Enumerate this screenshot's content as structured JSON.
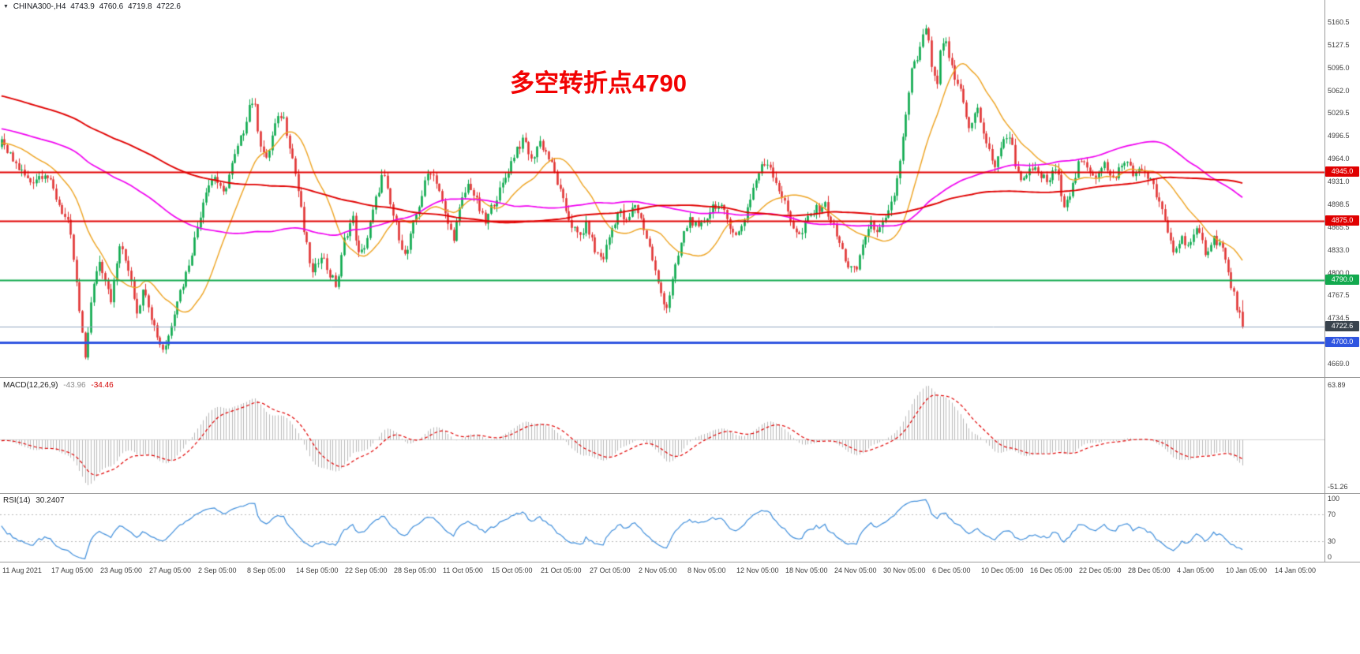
{
  "header": {
    "dropdown_icon": "▼",
    "symbol_period": "CHINA300-,H4",
    "open": "4743.9",
    "high": "4760.6",
    "low": "4719.8",
    "close": "4722.6"
  },
  "annotation": {
    "text": "多空转折点4790",
    "color": "#f20202"
  },
  "chart_data": {
    "type": "candlestick",
    "symbol": "CHINA300-",
    "timeframe": "H4",
    "last_candle": {
      "open": 4743.9,
      "high": 4760.6,
      "low": 4719.8,
      "close": 4722.6
    },
    "price_axis": {
      "visible_min": 4650,
      "visible_max": 5192,
      "ticks": [
        "5160.5",
        "5127.5",
        "5095.0",
        "5062.0",
        "5029.5",
        "4996.5",
        "4964.0",
        "4931.0",
        "4898.5",
        "4865.5",
        "4833.0",
        "4800.0",
        "4767.5",
        "4734.5",
        "4669.0"
      ]
    },
    "horizontal_levels": [
      {
        "label": "4945.0",
        "price": 4945.0,
        "color": "#e00000",
        "line_width": 2
      },
      {
        "label": "4875.0",
        "price": 4875.0,
        "color": "#e00000",
        "line_width": 2
      },
      {
        "label": "4790.0",
        "price": 4790.0,
        "color": "#12a94e",
        "line_width": 2
      },
      {
        "label": "4700.0",
        "price": 4700.0,
        "color": "#2f55e0",
        "line_width": 3
      }
    ],
    "current_price": {
      "label": "4722.6",
      "price": 4722.6,
      "line_color": "#93a8c0",
      "label_bg": "#39434d"
    },
    "candles": {
      "up_color": "#0ba94c",
      "down_color": "#e03333"
    },
    "moving_averages": [
      {
        "name": "fast-ma",
        "color": "#eda21f"
      },
      {
        "name": "mid-ma",
        "color": "#f000f0"
      },
      {
        "name": "slow-ma",
        "color": "#e00000"
      }
    ],
    "close_path_anchors": [
      [
        -0.38,
        5165
      ],
      [
        -0.25,
        5090
      ],
      [
        -0.12,
        5005
      ],
      [
        -0.05,
        4988
      ],
      [
        0.0,
        4985
      ],
      [
        0.009,
        4960
      ],
      [
        0.021,
        4930
      ],
      [
        0.033,
        4945
      ],
      [
        0.042,
        4905
      ],
      [
        0.051,
        4865
      ],
      [
        0.055,
        4810
      ],
      [
        0.06,
        4720
      ],
      [
        0.063,
        4678
      ],
      [
        0.067,
        4750
      ],
      [
        0.073,
        4820
      ],
      [
        0.079,
        4790
      ],
      [
        0.083,
        4760
      ],
      [
        0.089,
        4840
      ],
      [
        0.097,
        4800
      ],
      [
        0.102,
        4745
      ],
      [
        0.108,
        4780
      ],
      [
        0.114,
        4730
      ],
      [
        0.121,
        4690
      ],
      [
        0.125,
        4700
      ],
      [
        0.132,
        4760
      ],
      [
        0.138,
        4790
      ],
      [
        0.146,
        4850
      ],
      [
        0.154,
        4920
      ],
      [
        0.161,
        4940
      ],
      [
        0.167,
        4910
      ],
      [
        0.174,
        4955
      ],
      [
        0.182,
        5000
      ],
      [
        0.188,
        5050
      ],
      [
        0.191,
        5040
      ],
      [
        0.195,
        4990
      ],
      [
        0.2,
        4960
      ],
      [
        0.206,
        5010
      ],
      [
        0.212,
        5030
      ],
      [
        0.218,
        4980
      ],
      [
        0.223,
        4930
      ],
      [
        0.229,
        4850
      ],
      [
        0.235,
        4795
      ],
      [
        0.241,
        4830
      ],
      [
        0.247,
        4800
      ],
      [
        0.253,
        4780
      ],
      [
        0.259,
        4850
      ],
      [
        0.265,
        4880
      ],
      [
        0.27,
        4820
      ],
      [
        0.276,
        4850
      ],
      [
        0.282,
        4900
      ],
      [
        0.288,
        4945
      ],
      [
        0.293,
        4900
      ],
      [
        0.299,
        4860
      ],
      [
        0.305,
        4820
      ],
      [
        0.311,
        4870
      ],
      [
        0.317,
        4910
      ],
      [
        0.323,
        4950
      ],
      [
        0.329,
        4930
      ],
      [
        0.335,
        4880
      ],
      [
        0.341,
        4850
      ],
      [
        0.347,
        4900
      ],
      [
        0.353,
        4930
      ],
      [
        0.359,
        4900
      ],
      [
        0.365,
        4870
      ],
      [
        0.371,
        4900
      ],
      [
        0.377,
        4920
      ],
      [
        0.383,
        4950
      ],
      [
        0.389,
        4980
      ],
      [
        0.395,
        4990
      ],
      [
        0.4,
        4960
      ],
      [
        0.406,
        4990
      ],
      [
        0.412,
        4970
      ],
      [
        0.418,
        4940
      ],
      [
        0.424,
        4900
      ],
      [
        0.43,
        4870
      ],
      [
        0.436,
        4850
      ],
      [
        0.442,
        4870
      ],
      [
        0.448,
        4830
      ],
      [
        0.454,
        4820
      ],
      [
        0.46,
        4860
      ],
      [
        0.466,
        4890
      ],
      [
        0.472,
        4870
      ],
      [
        0.478,
        4900
      ],
      [
        0.484,
        4870
      ],
      [
        0.49,
        4830
      ],
      [
        0.496,
        4780
      ],
      [
        0.502,
        4750
      ],
      [
        0.508,
        4800
      ],
      [
        0.514,
        4850
      ],
      [
        0.52,
        4880
      ],
      [
        0.526,
        4860
      ],
      [
        0.532,
        4880
      ],
      [
        0.538,
        4900
      ],
      [
        0.544,
        4890
      ],
      [
        0.55,
        4870
      ],
      [
        0.555,
        4850
      ],
      [
        0.561,
        4880
      ],
      [
        0.567,
        4920
      ],
      [
        0.573,
        4950
      ],
      [
        0.579,
        4960
      ],
      [
        0.585,
        4930
      ],
      [
        0.591,
        4900
      ],
      [
        0.597,
        4870
      ],
      [
        0.603,
        4850
      ],
      [
        0.609,
        4880
      ],
      [
        0.615,
        4890
      ],
      [
        0.621,
        4900
      ],
      [
        0.627,
        4870
      ],
      [
        0.633,
        4840
      ],
      [
        0.639,
        4810
      ],
      [
        0.645,
        4800
      ],
      [
        0.651,
        4850
      ],
      [
        0.657,
        4870
      ],
      [
        0.663,
        4860
      ],
      [
        0.669,
        4880
      ],
      [
        0.675,
        4920
      ],
      [
        0.681,
        5000
      ],
      [
        0.687,
        5090
      ],
      [
        0.692,
        5110
      ],
      [
        0.698,
        5155
      ],
      [
        0.702,
        5100
      ],
      [
        0.706,
        5060
      ],
      [
        0.709,
        5120
      ],
      [
        0.713,
        5130
      ],
      [
        0.719,
        5080
      ],
      [
        0.725,
        5060
      ],
      [
        0.731,
        5000
      ],
      [
        0.736,
        5040
      ],
      [
        0.743,
        4990
      ],
      [
        0.749,
        4950
      ],
      [
        0.754,
        4980
      ],
      [
        0.761,
        5000
      ],
      [
        0.766,
        4950
      ],
      [
        0.772,
        4930
      ],
      [
        0.778,
        4950
      ],
      [
        0.784,
        4940
      ],
      [
        0.79,
        4930
      ],
      [
        0.796,
        4950
      ],
      [
        0.802,
        4900
      ],
      [
        0.808,
        4920
      ],
      [
        0.814,
        4960
      ],
      [
        0.82,
        4950
      ],
      [
        0.826,
        4940
      ],
      [
        0.832,
        4960
      ],
      [
        0.838,
        4930
      ],
      [
        0.844,
        4950
      ],
      [
        0.85,
        4960
      ],
      [
        0.856,
        4940
      ],
      [
        0.862,
        4950
      ],
      [
        0.868,
        4930
      ],
      [
        0.874,
        4900
      ],
      [
        0.88,
        4860
      ],
      [
        0.885,
        4830
      ],
      [
        0.891,
        4850
      ],
      [
        0.897,
        4840
      ],
      [
        0.903,
        4860
      ],
      [
        0.909,
        4830
      ],
      [
        0.915,
        4850
      ],
      [
        0.921,
        4840
      ],
      [
        0.927,
        4790
      ],
      [
        0.933,
        4750
      ],
      [
        0.937,
        4722.6
      ]
    ],
    "x_axis_labels": [
      "11 Aug 2021",
      "17 Aug 05:00",
      "23 Aug 05:00",
      "27 Aug 05:00",
      "2 Sep 05:00",
      "8 Sep 05:00",
      "14 Sep 05:00",
      "22 Sep 05:00",
      "28 Sep 05:00",
      "11 Oct 05:00",
      "15 Oct 05:00",
      "21 Oct 05:00",
      "27 Oct 05:00",
      "2 Nov 05:00",
      "8 Nov 05:00",
      "12 Nov 05:00",
      "18 Nov 05:00",
      "24 Nov 05:00",
      "30 Nov 05:00",
      "6 Dec 05:00",
      "10 Dec 05:00",
      "16 Dec 05:00",
      "22 Dec 05:00",
      "28 Dec 05:00",
      "4 Jan 05:00",
      "10 Jan 05:00",
      "14 Jan 05:00"
    ],
    "indicators": {
      "macd": {
        "label": "MACD(12,26,9)",
        "value_main": "-43.96",
        "value_signal": "-34.46",
        "axis_top": "63.89",
        "axis_bottom": "-51.26",
        "histogram_color": "#b8b8b8",
        "signal_color": "#e00000"
      },
      "rsi": {
        "label": "RSI(14)",
        "value": "30.2407",
        "line_color": "#3f8edb",
        "axis_labels": [
          "100",
          "70",
          "30",
          "0"
        ],
        "guide_levels": [
          70,
          30
        ]
      }
    }
  }
}
